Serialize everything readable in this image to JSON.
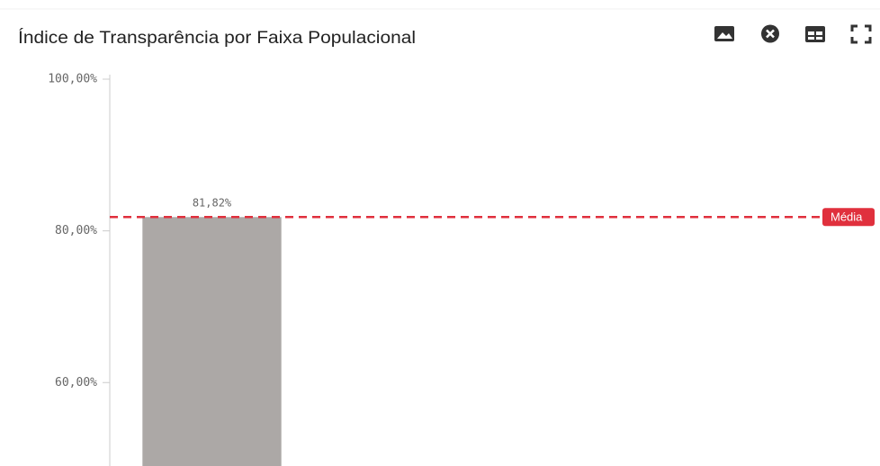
{
  "chart_data": {
    "type": "bar",
    "title": "Índice de Transparência por Faixa Populacional",
    "categories": [
      null
    ],
    "values": [
      81.82
    ],
    "value_labels": [
      "81,82%"
    ],
    "color": "#aca8a6",
    "ylim": [
      49,
      100
    ],
    "yticks": [
      {
        "value": 60,
        "label": "60,00%"
      },
      {
        "value": 80,
        "label": "80,00%"
      },
      {
        "value": 100,
        "label": "100,00%"
      }
    ],
    "annotations": [
      {
        "label": "Média",
        "value": 81.82,
        "color": "#e0303d"
      }
    ]
  }
}
